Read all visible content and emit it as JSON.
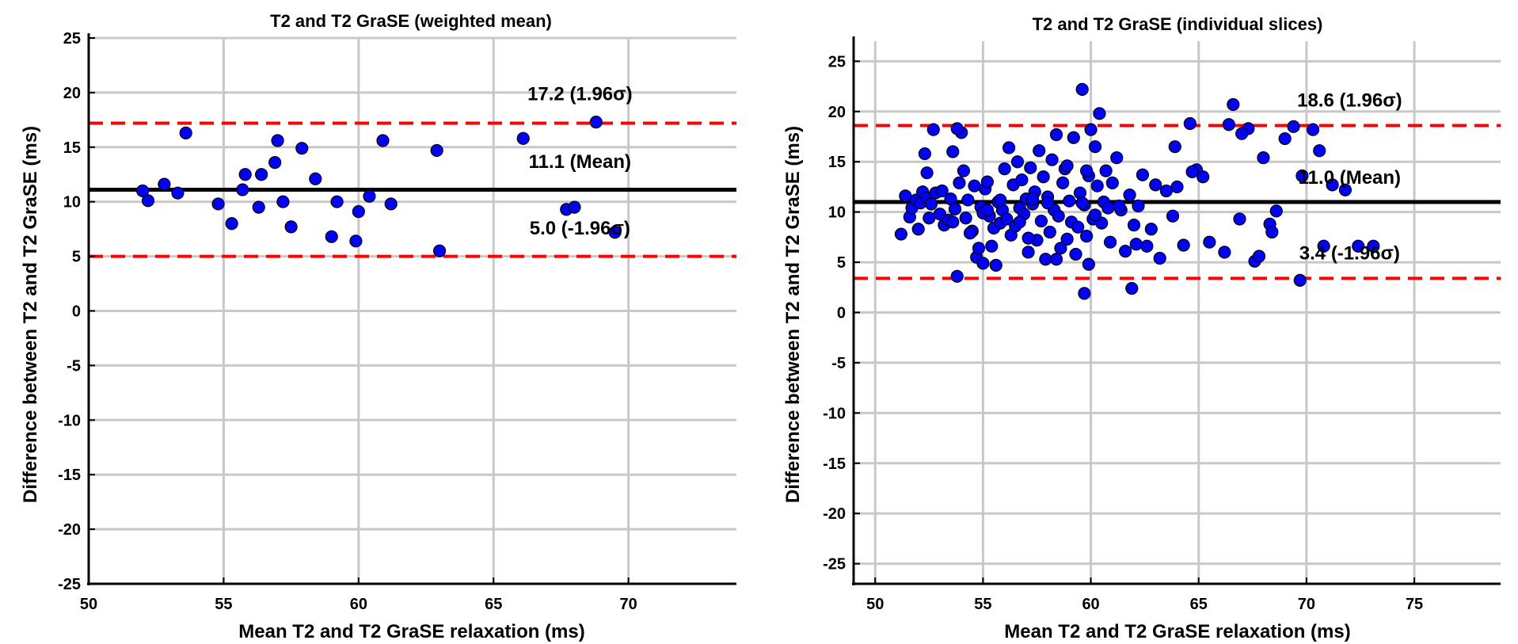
{
  "chart_data": [
    {
      "type": "scatter",
      "title": "T2 and T2 GraSE (weighted mean)",
      "xlabel": "Mean T2 and T2 GraSE relaxation (ms)",
      "ylabel": "Difference between T2 and T2 GraSE (ms)",
      "xlim": [
        50,
        74
      ],
      "ylim": [
        -25,
        25
      ],
      "xticks": [
        50,
        55,
        60,
        65,
        70
      ],
      "yticks": [
        -25,
        -20,
        -15,
        -10,
        -5,
        0,
        5,
        10,
        15,
        20,
        25
      ],
      "grid": true,
      "marker_color": "#0000ff",
      "mean": 11.1,
      "upper_loa": 17.2,
      "lower_loa": 5.0,
      "annotations": [
        {
          "text": "17.2 (1.96σ)",
          "x": 68.2,
          "y": 19.3
        },
        {
          "text": "11.1 (Mean)",
          "x": 68.2,
          "y": 13.1
        },
        {
          "text": "5.0 (-1.96σ)",
          "x": 68.2,
          "y": 7.0
        }
      ],
      "x": [
        52.0,
        52.2,
        52.8,
        53.3,
        53.6,
        54.8,
        55.3,
        55.7,
        55.8,
        56.3,
        56.4,
        56.9,
        57.0,
        57.2,
        57.5,
        57.9,
        58.4,
        59.0,
        59.2,
        59.9,
        60.0,
        60.4,
        60.9,
        61.2,
        62.9,
        63.0,
        66.1,
        67.7,
        68.0,
        68.8,
        69.5
      ],
      "y": [
        11.0,
        10.1,
        11.6,
        10.8,
        16.3,
        9.8,
        8.0,
        11.1,
        12.5,
        9.5,
        12.5,
        13.6,
        15.6,
        10.0,
        7.7,
        14.9,
        12.1,
        6.8,
        10.0,
        6.4,
        9.1,
        10.5,
        15.6,
        9.8,
        14.7,
        5.5,
        15.8,
        9.3,
        9.5,
        17.3,
        7.2
      ]
    },
    {
      "type": "scatter",
      "title": "T2 and T2 GraSE (individual slices)",
      "xlabel": "Mean T2 and T2 GraSE relaxation (ms)",
      "ylabel": "Difference between T2 and T2 GraSE (ms)",
      "xlim": [
        49,
        79
      ],
      "ylim": [
        -27,
        27
      ],
      "xticks": [
        50,
        55,
        60,
        65,
        70,
        75
      ],
      "yticks": [
        -25,
        -20,
        -15,
        -10,
        -5,
        0,
        5,
        10,
        15,
        20,
        25
      ],
      "grid": true,
      "marker_color": "#0000ff",
      "mean": 11.0,
      "upper_loa": 18.6,
      "lower_loa": 3.4,
      "annotations": [
        {
          "text": "18.6 (1.96σ)",
          "x": 72.0,
          "y": 20.5
        },
        {
          "text": "11.0 (Mean)",
          "x": 72.0,
          "y": 12.8
        },
        {
          "text": "3.4 (-1.96σ)",
          "x": 72.0,
          "y": 5.3
        }
      ],
      "x": [
        51.2,
        51.4,
        51.6,
        51.7,
        51.9,
        52.0,
        52.1,
        52.2,
        52.3,
        52.4,
        52.5,
        52.6,
        52.7,
        52.8,
        53.0,
        53.1,
        53.2,
        53.4,
        53.5,
        53.6,
        53.7,
        53.8,
        53.9,
        54.0,
        54.1,
        54.2,
        54.3,
        54.5,
        54.6,
        54.7,
        54.8,
        54.9,
        55.0,
        55.1,
        55.2,
        55.3,
        55.4,
        55.5,
        55.6,
        55.7,
        55.8,
        55.9,
        56.0,
        56.1,
        56.2,
        56.3,
        56.4,
        56.5,
        56.6,
        56.7,
        56.8,
        56.9,
        57.0,
        57.1,
        57.2,
        57.3,
        57.4,
        57.5,
        57.6,
        57.7,
        57.8,
        57.9,
        58.0,
        58.1,
        58.2,
        58.3,
        58.4,
        58.5,
        58.6,
        58.7,
        58.8,
        58.9,
        59.0,
        59.1,
        59.2,
        59.3,
        59.4,
        59.5,
        59.6,
        59.7,
        59.8,
        59.9,
        60.0,
        60.1,
        60.2,
        60.3,
        60.4,
        60.5,
        60.6,
        60.7,
        60.8,
        60.9,
        61.0,
        61.2,
        61.4,
        61.6,
        61.8,
        62.0,
        62.2,
        62.4,
        62.6,
        62.8,
        63.2,
        63.5,
        63.8,
        64.0,
        64.3,
        64.6,
        64.9,
        65.2,
        66.2,
        66.6,
        66.9,
        67.3,
        67.6,
        68.0,
        68.3,
        68.6,
        69.0,
        69.4,
        69.8,
        70.3,
        70.6,
        71.2,
        71.8,
        72.4,
        73.1,
        52.4,
        53.6,
        54.4,
        55.2,
        55.8,
        56.7,
        57.3,
        58.0,
        58.9,
        59.6,
        60.2,
        61.3,
        62.1,
        63.0,
        63.9,
        64.7,
        65.5,
        66.4,
        67.0,
        67.8,
        68.4,
        69.7,
        70.8,
        59.7,
        59.9,
        59.8,
        61.9,
        53.8,
        55.0,
        57.1,
        58.4
      ],
      "y": [
        7.8,
        11.6,
        9.5,
        10.4,
        11.2,
        8.3,
        10.9,
        12.0,
        15.8,
        11.4,
        9.4,
        10.8,
        18.2,
        11.9,
        9.8,
        12.1,
        8.7,
        9.2,
        11.3,
        16.0,
        10.3,
        3.6,
        12.9,
        17.9,
        14.1,
        9.4,
        11.2,
        8.1,
        12.6,
        5.5,
        6.4,
        10.5,
        9.9,
        12.3,
        13.0,
        9.6,
        6.6,
        8.4,
        4.7,
        11.0,
        8.9,
        10.2,
        14.3,
        9.3,
        16.4,
        7.7,
        12.7,
        8.6,
        15.0,
        10.4,
        13.2,
        9.8,
        11.3,
        6.0,
        14.4,
        10.8,
        12.0,
        7.2,
        16.1,
        9.1,
        13.5,
        5.3,
        11.5,
        8.0,
        15.2,
        10.2,
        17.7,
        9.6,
        6.4,
        12.9,
        14.3,
        7.3,
        11.1,
        9.0,
        17.4,
        5.8,
        8.5,
        11.9,
        22.2,
        10.7,
        7.6,
        13.6,
        18.2,
        9.3,
        16.5,
        12.6,
        19.8,
        8.9,
        11.0,
        14.1,
        10.4,
        7.0,
        12.9,
        15.4,
        10.2,
        6.1,
        11.7,
        8.7,
        10.6,
        13.7,
        6.6,
        8.3,
        5.4,
        12.1,
        9.6,
        12.5,
        6.7,
        18.8,
        14.2,
        13.5,
        6.0,
        20.7,
        9.3,
        18.3,
        5.1,
        15.4,
        8.8,
        10.1,
        17.3,
        18.5,
        13.6,
        18.2,
        16.1,
        12.7,
        12.2,
        6.6,
        6.6,
        13.9,
        9.0,
        7.9,
        10.2,
        11.2,
        9.0,
        11.3,
        10.9,
        14.6,
        10.9,
        9.7,
        10.6,
        6.8,
        12.7,
        16.5,
        14.0,
        7.0,
        18.7,
        17.8,
        5.6,
        8.0,
        3.2,
        6.6,
        1.9,
        4.8,
        14.1,
        2.4,
        18.3,
        4.9,
        7.4,
        5.3
      ]
    }
  ]
}
